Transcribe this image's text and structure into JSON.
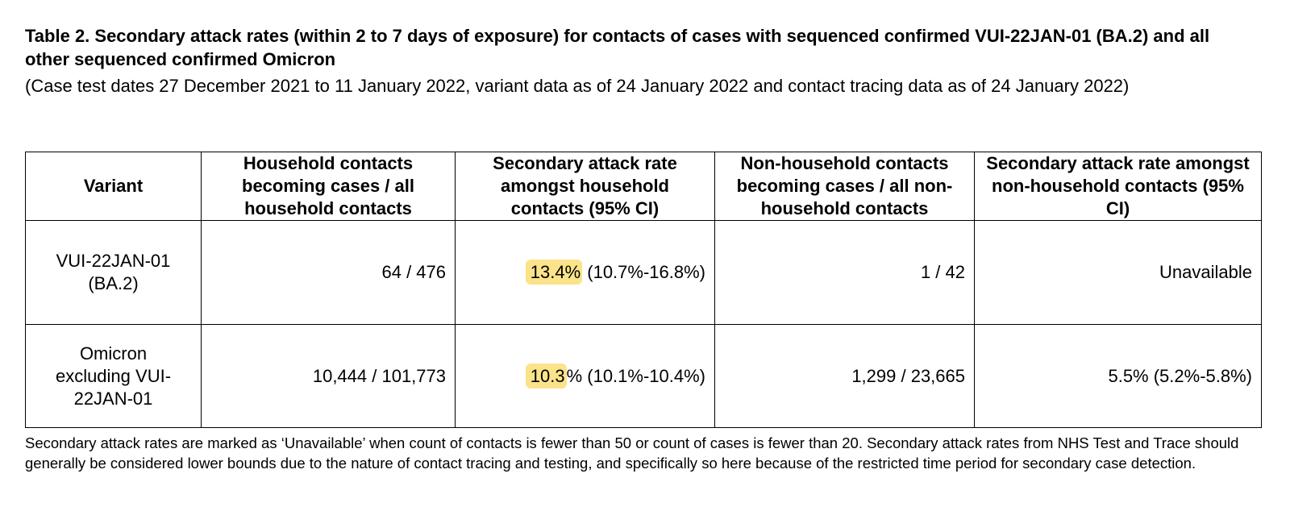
{
  "title": "Table 2. Secondary attack rates (within 2 to 7 days of exposure) for contacts of cases with sequenced confirmed VUI-22JAN-01 (BA.2) and all other sequenced confirmed Omicron",
  "subtitle": "(Case test dates 27 December 2021 to 11 January 2022, variant data as of 24 January 2022 and contact tracing data as of 24 January 2022)",
  "table": {
    "headers": [
      "Variant",
      "Household contacts becoming cases / all household contacts",
      "Secondary attack rate amongst household contacts (95% CI)",
      "Non-household contacts becoming cases / all non-household contacts",
      "Secondary attack rate amongst non-household contacts (95% CI)"
    ],
    "rows": [
      {
        "variant": "VUI-22JAN-01 (BA.2)",
        "household": "64 / 476",
        "household_sar_highlight": "13.4%",
        "household_sar_rest": " (10.7%-16.8%)",
        "non_household": "1 / 42",
        "non_household_sar": "Unavailable"
      },
      {
        "variant": "Omicron excluding VUI-22JAN-01",
        "household": "10,444 / 101,773",
        "household_sar_highlight": "10.3",
        "household_sar_rest": "% (10.1%-10.4%)",
        "non_household": "1,299 / 23,665",
        "non_household_sar": "5.5% (5.2%-5.8%)"
      }
    ]
  },
  "footnote": "Secondary attack rates are marked as ‘Unavailable’ when count of contacts is fewer than 50 or count of cases is fewer than 20. Secondary attack rates from NHS Test and Trace should generally be considered lower bounds due to the nature of contact tracing and testing, and specifically so here because of the restricted time period for secondary case detection.",
  "colors": {
    "highlight": "#fbe38a",
    "border": "#000000"
  }
}
